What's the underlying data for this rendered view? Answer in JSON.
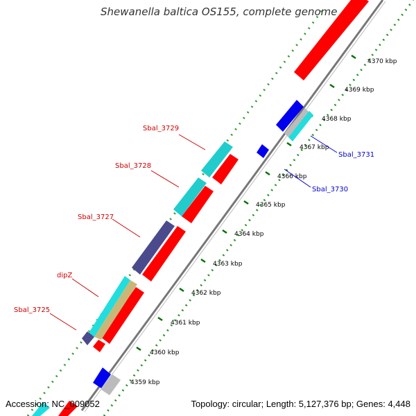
{
  "title": "Shewanella baltica OS155, complete genome",
  "footer": {
    "accession": "Accession: NC_009052",
    "summary": "Topology: circular; Length: 5,127,376 bp; Genes: 4,448"
  },
  "ticks": [
    "4359 kbp",
    "4360 kbp",
    "4361 kbp",
    "4362 kbp",
    "4363 kbp",
    "4364 kbp",
    "4365 kbp",
    "4366 kbp",
    "4367 kbp",
    "4368 kbp",
    "4369 kbp",
    "4370 kbp"
  ],
  "gene_labels": {
    "left": [
      "Sbal_3729",
      "Sbal_3728",
      "Sbal_3727",
      "dipZ",
      "Sbal_3725"
    ],
    "right": [
      "Sbal_3731",
      "Sbal_3730"
    ]
  },
  "colors": {
    "forward_cds": "#ff0000",
    "reverse_cds": "#0000ff",
    "cyan_feature": "#00e0e0",
    "purple_feature": "#4a4a8c",
    "tan_feature": "#c8b878",
    "gray_feature": "#cccccc",
    "backbone": "#888888",
    "tick_dots": "#008000",
    "label_left": "#cc0000",
    "label_right": "#0000cc"
  }
}
